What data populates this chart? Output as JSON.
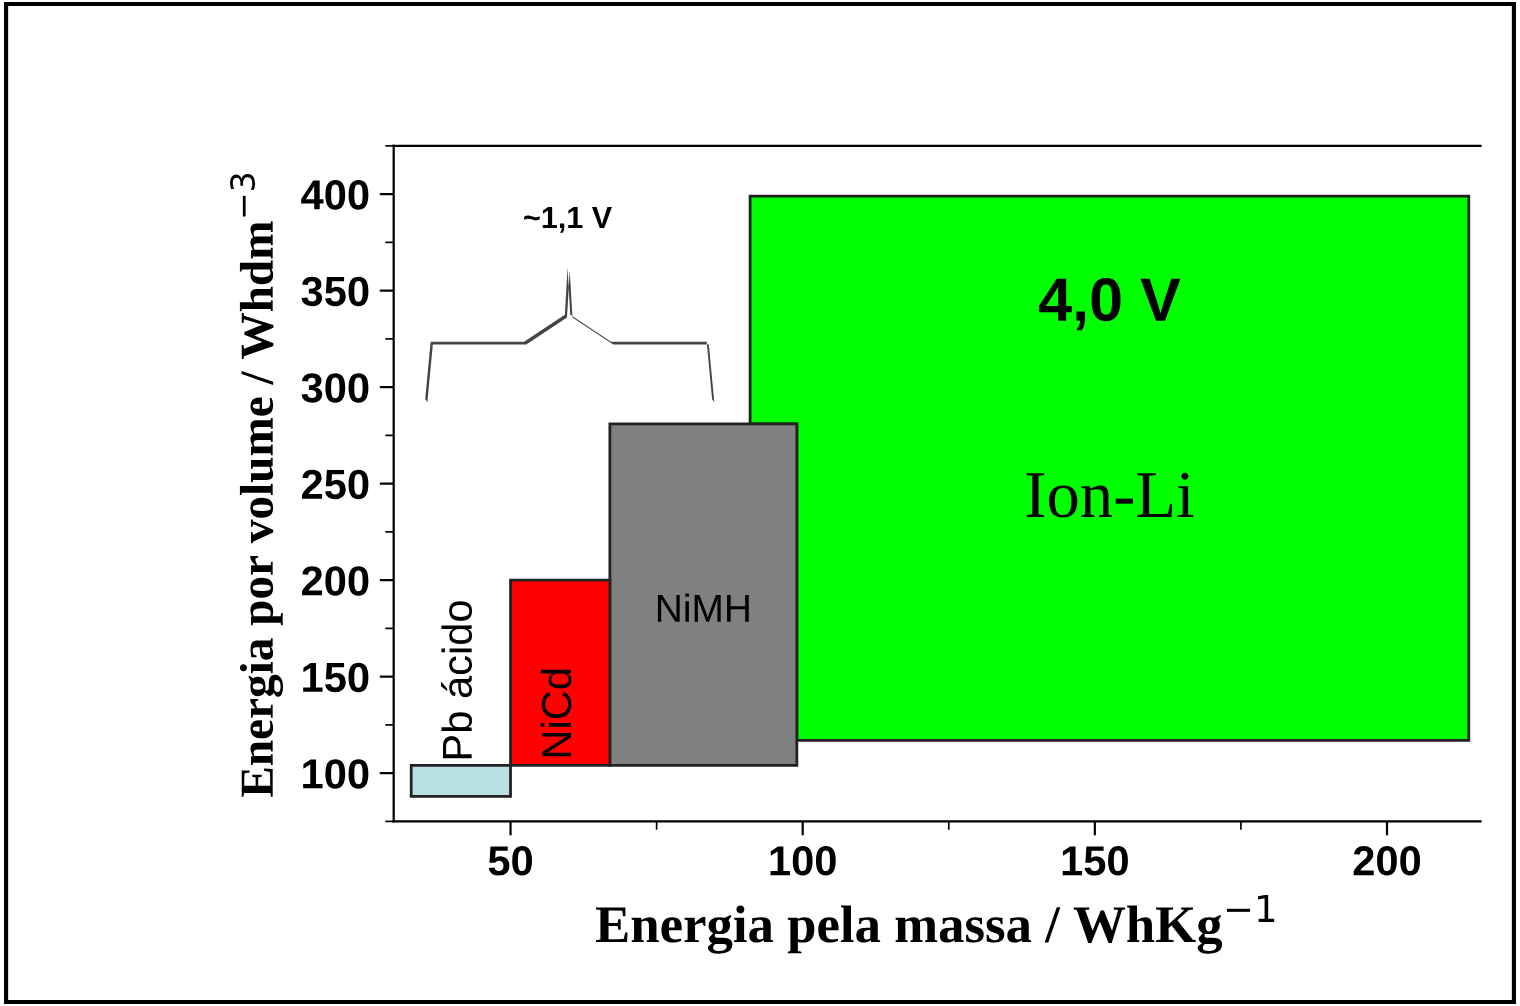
{
  "chart_data": {
    "type": "area",
    "xlabel": "Energia pela massa / WhKg$^{−1}$",
    "ylabel": "Energia por volume / Whdm$^{−3}$",
    "annotations": [
      "~1,1 V",
      "4,0 V"
    ],
    "series": [
      {
        "name": "Pb ácido",
        "color": "#b9e0e5",
        "x": [
          33,
          33,
          50,
          50,
          33
        ],
        "values": [
          88,
          104,
          104,
          88,
          88
        ]
      },
      {
        "name": "NiCd",
        "color": "#ff0000",
        "x": [
          50,
          50,
          67,
          67,
          50
        ],
        "values": [
          104,
          200,
          200,
          104,
          104
        ]
      },
      {
        "name": "NiMH",
        "color": "#808080",
        "x": [
          67,
          67,
          99,
          99,
          67
        ],
        "values": [
          104,
          281,
          281,
          104,
          104
        ]
      },
      {
        "name": "Ion-Li",
        "color": "#00ff00",
        "x": [
          99,
          214,
          214,
          91,
          91,
          99,
          99
        ],
        "values": [
          117,
          117,
          399,
          399,
          281,
          281,
          117
        ]
      }
    ],
    "xlim": [
      30,
      216
    ],
    "ylim": [
      75,
      425
    ],
    "xticks": [
      50,
      100,
      150,
      200
    ],
    "yticks": [
      100,
      150,
      200,
      250,
      300,
      350,
      400
    ],
    "grid": false,
    "legend": false
  }
}
